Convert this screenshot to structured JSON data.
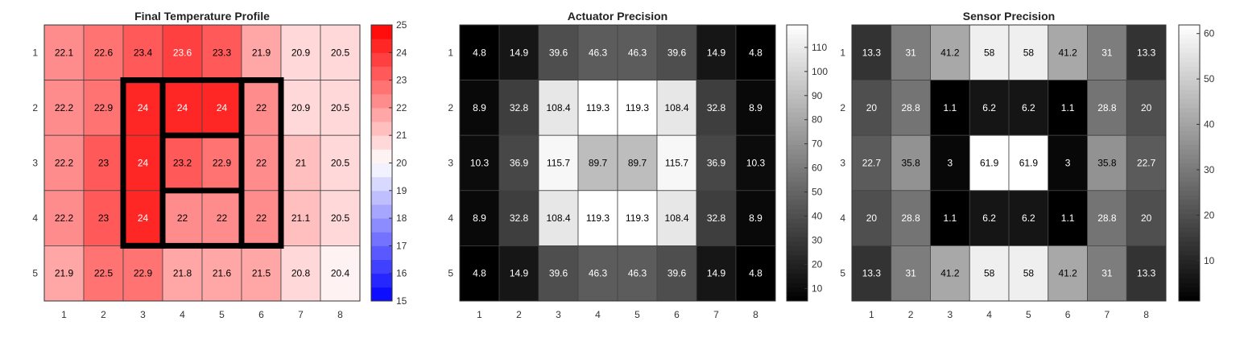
{
  "chart_data": [
    {
      "type": "heatmap",
      "title": "Final Temperature Profile",
      "x": [
        "1",
        "2",
        "3",
        "4",
        "5",
        "6",
        "7",
        "8"
      ],
      "y": [
        "1",
        "2",
        "3",
        "4",
        "5"
      ],
      "values": [
        [
          22.1,
          22.6,
          23.4,
          23.6,
          23.3,
          21.9,
          20.9,
          20.5
        ],
        [
          22.2,
          22.9,
          24,
          24,
          24,
          22,
          20.9,
          20.5
        ],
        [
          22.2,
          23,
          24,
          23.2,
          22.9,
          22,
          21,
          20.5
        ],
        [
          22.2,
          23,
          24,
          22,
          22,
          22,
          21.1,
          20.5
        ],
        [
          21.9,
          22.5,
          22.9,
          21.8,
          21.6,
          21.5,
          20.8,
          20.4
        ]
      ],
      "colormap": "blue-white-red",
      "clim": [
        15,
        25
      ],
      "colorbar_ticks": [
        "15",
        "16",
        "17",
        "18",
        "19",
        "20",
        "21",
        "22",
        "23",
        "24",
        "25"
      ],
      "outline_color": "#000000"
    },
    {
      "type": "heatmap",
      "title": "Actuator Precision",
      "x": [
        "1",
        "2",
        "3",
        "4",
        "5",
        "6",
        "7",
        "8"
      ],
      "y": [
        "1",
        "2",
        "3",
        "4",
        "5"
      ],
      "values": [
        [
          4.8,
          14.9,
          39.6,
          46.3,
          46.3,
          39.6,
          14.9,
          4.8
        ],
        [
          8.9,
          32.8,
          108.4,
          119.3,
          119.3,
          108.4,
          32.8,
          8.9
        ],
        [
          10.3,
          36.9,
          115.7,
          89.7,
          89.7,
          115.7,
          36.9,
          10.3
        ],
        [
          8.9,
          32.8,
          108.4,
          119.3,
          119.3,
          108.4,
          32.8,
          8.9
        ],
        [
          4.8,
          14.9,
          39.6,
          46.3,
          46.3,
          39.6,
          14.9,
          4.8
        ]
      ],
      "colormap": "gray",
      "clim": [
        4.8,
        119.3
      ],
      "colorbar_ticks": [
        "10",
        "20",
        "30",
        "40",
        "50",
        "60",
        "70",
        "80",
        "90",
        "100",
        "110"
      ]
    },
    {
      "type": "heatmap",
      "title": "Sensor Precision",
      "x": [
        "1",
        "2",
        "3",
        "4",
        "5",
        "6",
        "7",
        "8"
      ],
      "y": [
        "1",
        "2",
        "3",
        "4",
        "5"
      ],
      "values": [
        [
          13.3,
          31,
          41.2,
          58,
          58,
          41.2,
          31,
          13.3
        ],
        [
          20,
          28.8,
          1.1,
          6.2,
          6.2,
          1.1,
          28.8,
          20
        ],
        [
          22.7,
          35.8,
          3,
          61.9,
          61.9,
          3,
          35.8,
          22.7
        ],
        [
          20,
          28.8,
          1.1,
          6.2,
          6.2,
          1.1,
          28.8,
          20
        ],
        [
          13.3,
          31,
          41.2,
          58,
          58,
          41.2,
          31,
          13.3
        ]
      ],
      "colormap": "gray",
      "clim": [
        1.1,
        61.9
      ],
      "colorbar_ticks": [
        "10",
        "20",
        "30",
        "40",
        "50",
        "60"
      ]
    }
  ]
}
